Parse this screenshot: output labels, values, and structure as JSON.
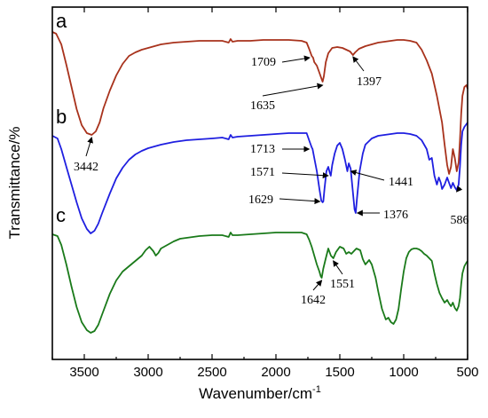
{
  "chart_data": {
    "type": "line",
    "xlabel": "Wavenumber/cm",
    "xlabel_superscript": "-1",
    "ylabel": "Transmittance/%",
    "xlim": [
      3750,
      500
    ],
    "x_reversed": true,
    "y_ticks_shown": false,
    "x_ticks": [
      3500,
      3000,
      2500,
      2000,
      1500,
      1000,
      500
    ],
    "x_tick_labels": [
      "3500",
      "3000",
      "2500",
      "2000",
      "1500",
      "1000",
      "500"
    ],
    "colors": {
      "a": "#a8321c",
      "b": "#1f1fe0",
      "c": "#1a7a1a"
    },
    "series": [
      {
        "name": "a",
        "color": "#a8321c",
        "points": [
          [
            3750,
            28
          ],
          [
            3720,
            30
          ],
          [
            3680,
            42
          ],
          [
            3640,
            65
          ],
          [
            3600,
            90
          ],
          [
            3560,
            115
          ],
          [
            3520,
            133
          ],
          [
            3480,
            142
          ],
          [
            3442,
            144
          ],
          [
            3410,
            140
          ],
          [
            3380,
            130
          ],
          [
            3350,
            114
          ],
          [
            3300,
            94
          ],
          [
            3250,
            77
          ],
          [
            3200,
            64
          ],
          [
            3150,
            55
          ],
          [
            3100,
            51
          ],
          [
            3050,
            48
          ],
          [
            3000,
            46
          ],
          [
            2950,
            44
          ],
          [
            2900,
            42
          ],
          [
            2800,
            40
          ],
          [
            2700,
            39
          ],
          [
            2600,
            38
          ],
          [
            2500,
            38
          ],
          [
            2420,
            38
          ],
          [
            2370,
            40
          ],
          [
            2355,
            36
          ],
          [
            2340,
            39
          ],
          [
            2300,
            38
          ],
          [
            2200,
            38
          ],
          [
            2100,
            37
          ],
          [
            2000,
            37
          ],
          [
            1900,
            37
          ],
          [
            1800,
            38
          ],
          [
            1760,
            40
          ],
          [
            1740,
            47
          ],
          [
            1720,
            55
          ],
          [
            1709,
            57
          ],
          [
            1700,
            62
          ],
          [
            1680,
            66
          ],
          [
            1660,
            74
          ],
          [
            1645,
            80
          ],
          [
            1635,
            84
          ],
          [
            1625,
            78
          ],
          [
            1610,
            62
          ],
          [
            1590,
            52
          ],
          [
            1560,
            46
          ],
          [
            1520,
            45
          ],
          [
            1480,
            46
          ],
          [
            1450,
            48
          ],
          [
            1420,
            50
          ],
          [
            1397,
            54
          ],
          [
            1380,
            51
          ],
          [
            1350,
            47
          ],
          [
            1300,
            44
          ],
          [
            1250,
            42
          ],
          [
            1200,
            40
          ],
          [
            1150,
            39
          ],
          [
            1100,
            38
          ],
          [
            1050,
            37
          ],
          [
            1000,
            37
          ],
          [
            950,
            38
          ],
          [
            900,
            40
          ],
          [
            860,
            48
          ],
          [
            820,
            60
          ],
          [
            780,
            75
          ],
          [
            740,
            100
          ],
          [
            700,
            130
          ],
          [
            680,
            155
          ],
          [
            660,
            178
          ],
          [
            645,
            188
          ],
          [
            630,
            180
          ],
          [
            615,
            160
          ],
          [
            600,
            170
          ],
          [
            585,
            185
          ],
          [
            570,
            175
          ],
          [
            560,
            150
          ],
          [
            550,
            120
          ],
          [
            540,
            100
          ],
          [
            525,
            90
          ],
          [
            510,
            88
          ],
          [
            500,
            92
          ]
        ]
      },
      {
        "name": "b",
        "color": "#1f1fe0",
        "points": [
          [
            3750,
            145
          ],
          [
            3710,
            148
          ],
          [
            3680,
            160
          ],
          [
            3640,
            180
          ],
          [
            3600,
            200
          ],
          [
            3560,
            220
          ],
          [
            3520,
            238
          ],
          [
            3480,
            250
          ],
          [
            3450,
            255
          ],
          [
            3420,
            252
          ],
          [
            3390,
            244
          ],
          [
            3360,
            232
          ],
          [
            3300,
            210
          ],
          [
            3250,
            193
          ],
          [
            3200,
            181
          ],
          [
            3150,
            172
          ],
          [
            3100,
            166
          ],
          [
            3050,
            162
          ],
          [
            3000,
            159
          ],
          [
            2950,
            157
          ],
          [
            2900,
            155
          ],
          [
            2800,
            152
          ],
          [
            2700,
            150
          ],
          [
            2600,
            149
          ],
          [
            2500,
            148
          ],
          [
            2420,
            147
          ],
          [
            2370,
            149
          ],
          [
            2355,
            144
          ],
          [
            2340,
            147
          ],
          [
            2300,
            146
          ],
          [
            2200,
            145
          ],
          [
            2100,
            144
          ],
          [
            2000,
            143
          ],
          [
            1900,
            142
          ],
          [
            1800,
            142
          ],
          [
            1760,
            142
          ],
          [
            1740,
            150
          ],
          [
            1720,
            158
          ],
          [
            1713,
            160
          ],
          [
            1700,
            170
          ],
          [
            1680,
            185
          ],
          [
            1660,
            205
          ],
          [
            1645,
            218
          ],
          [
            1635,
            220
          ],
          [
            1629,
            219
          ],
          [
            1620,
            205
          ],
          [
            1605,
            185
          ],
          [
            1590,
            180
          ],
          [
            1580,
            186
          ],
          [
            1571,
            190
          ],
          [
            1560,
            178
          ],
          [
            1540,
            165
          ],
          [
            1520,
            156
          ],
          [
            1500,
            153
          ],
          [
            1480,
            160
          ],
          [
            1460,
            172
          ],
          [
            1441,
            185
          ],
          [
            1430,
            176
          ],
          [
            1415,
            182
          ],
          [
            1400,
            205
          ],
          [
            1385,
            228
          ],
          [
            1376,
            232
          ],
          [
            1365,
            215
          ],
          [
            1345,
            185
          ],
          [
            1320,
            165
          ],
          [
            1300,
            155
          ],
          [
            1250,
            148
          ],
          [
            1200,
            145
          ],
          [
            1150,
            144
          ],
          [
            1100,
            143
          ],
          [
            1050,
            142
          ],
          [
            1000,
            142
          ],
          [
            950,
            143
          ],
          [
            900,
            145
          ],
          [
            860,
            150
          ],
          [
            820,
            160
          ],
          [
            800,
            172
          ],
          [
            780,
            170
          ],
          [
            760,
            190
          ],
          [
            740,
            200
          ],
          [
            725,
            192
          ],
          [
            710,
            198
          ],
          [
            700,
            205
          ],
          [
            680,
            200
          ],
          [
            660,
            192
          ],
          [
            645,
            198
          ],
          [
            630,
            204
          ],
          [
            615,
            198
          ],
          [
            600,
            203
          ],
          [
            586,
            206
          ],
          [
            570,
            200
          ],
          [
            560,
            180
          ],
          [
            550,
            155
          ],
          [
            540,
            140
          ],
          [
            525,
            135
          ],
          [
            510,
            132
          ],
          [
            500,
            130
          ]
        ]
      },
      {
        "name": "c",
        "color": "#1a7a1a",
        "points": [
          [
            3750,
            256
          ],
          [
            3710,
            258
          ],
          [
            3680,
            268
          ],
          [
            3640,
            290
          ],
          [
            3600,
            315
          ],
          [
            3560,
            338
          ],
          [
            3520,
            355
          ],
          [
            3480,
            364
          ],
          [
            3450,
            367
          ],
          [
            3420,
            365
          ],
          [
            3390,
            358
          ],
          [
            3360,
            346
          ],
          [
            3300,
            323
          ],
          [
            3250,
            308
          ],
          [
            3200,
            298
          ],
          [
            3150,
            292
          ],
          [
            3100,
            286
          ],
          [
            3050,
            280
          ],
          [
            3020,
            274
          ],
          [
            2990,
            270
          ],
          [
            2960,
            275
          ],
          [
            2940,
            280
          ],
          [
            2920,
            277
          ],
          [
            2900,
            272
          ],
          [
            2850,
            268
          ],
          [
            2800,
            264
          ],
          [
            2750,
            261
          ],
          [
            2700,
            260
          ],
          [
            2600,
            258
          ],
          [
            2500,
            257
          ],
          [
            2420,
            257
          ],
          [
            2370,
            259
          ],
          [
            2355,
            254
          ],
          [
            2340,
            257
          ],
          [
            2300,
            257
          ],
          [
            2200,
            256
          ],
          [
            2100,
            255
          ],
          [
            2000,
            254
          ],
          [
            1900,
            254
          ],
          [
            1800,
            254
          ],
          [
            1760,
            256
          ],
          [
            1740,
            262
          ],
          [
            1720,
            270
          ],
          [
            1700,
            280
          ],
          [
            1680,
            290
          ],
          [
            1660,
            298
          ],
          [
            1650,
            303
          ],
          [
            1642,
            305
          ],
          [
            1630,
            295
          ],
          [
            1610,
            283
          ],
          [
            1590,
            272
          ],
          [
            1570,
            280
          ],
          [
            1551,
            283
          ],
          [
            1530,
            276
          ],
          [
            1500,
            270
          ],
          [
            1470,
            272
          ],
          [
            1450,
            278
          ],
          [
            1430,
            276
          ],
          [
            1410,
            278
          ],
          [
            1390,
            275
          ],
          [
            1370,
            272
          ],
          [
            1340,
            274
          ],
          [
            1320,
            284
          ],
          [
            1300,
            290
          ],
          [
            1270,
            285
          ],
          [
            1250,
            290
          ],
          [
            1220,
            305
          ],
          [
            1200,
            320
          ],
          [
            1170,
            340
          ],
          [
            1140,
            352
          ],
          [
            1120,
            350
          ],
          [
            1100,
            355
          ],
          [
            1080,
            357
          ],
          [
            1060,
            352
          ],
          [
            1040,
            340
          ],
          [
            1020,
            318
          ],
          [
            1000,
            298
          ],
          [
            980,
            283
          ],
          [
            960,
            276
          ],
          [
            940,
            273
          ],
          [
            920,
            272
          ],
          [
            900,
            272
          ],
          [
            880,
            273
          ],
          [
            860,
            275
          ],
          [
            840,
            278
          ],
          [
            820,
            280
          ],
          [
            800,
            283
          ],
          [
            780,
            286
          ],
          [
            760,
            300
          ],
          [
            740,
            312
          ],
          [
            720,
            322
          ],
          [
            700,
            328
          ],
          [
            680,
            333
          ],
          [
            660,
            330
          ],
          [
            645,
            334
          ],
          [
            630,
            337
          ],
          [
            615,
            333
          ],
          [
            600,
            339
          ],
          [
            585,
            342
          ],
          [
            570,
            337
          ],
          [
            560,
            328
          ],
          [
            550,
            312
          ],
          [
            540,
            300
          ],
          [
            525,
            292
          ],
          [
            510,
            288
          ],
          [
            500,
            286
          ]
        ]
      }
    ],
    "panel_labels": [
      {
        "text": "a",
        "series": "a"
      },
      {
        "text": "b",
        "series": "b"
      },
      {
        "text": "c",
        "series": "c"
      }
    ],
    "annotations": [
      {
        "text": "1709",
        "series": "a",
        "x": 1709
      },
      {
        "text": "1635",
        "series": "a",
        "x": 1635
      },
      {
        "text": "1397",
        "series": "a",
        "x": 1397
      },
      {
        "text": "3442",
        "series": "a",
        "x": 3442
      },
      {
        "text": "1713",
        "series": "b",
        "x": 1713
      },
      {
        "text": "1571",
        "series": "b",
        "x": 1571
      },
      {
        "text": "1629",
        "series": "b",
        "x": 1629
      },
      {
        "text": "1441",
        "series": "b",
        "x": 1441
      },
      {
        "text": "1376",
        "series": "b",
        "x": 1376
      },
      {
        "text": "586",
        "series": "b",
        "x": 586
      },
      {
        "text": "1642",
        "series": "c",
        "x": 1642
      },
      {
        "text": "1551",
        "series": "c",
        "x": 1551
      }
    ]
  }
}
